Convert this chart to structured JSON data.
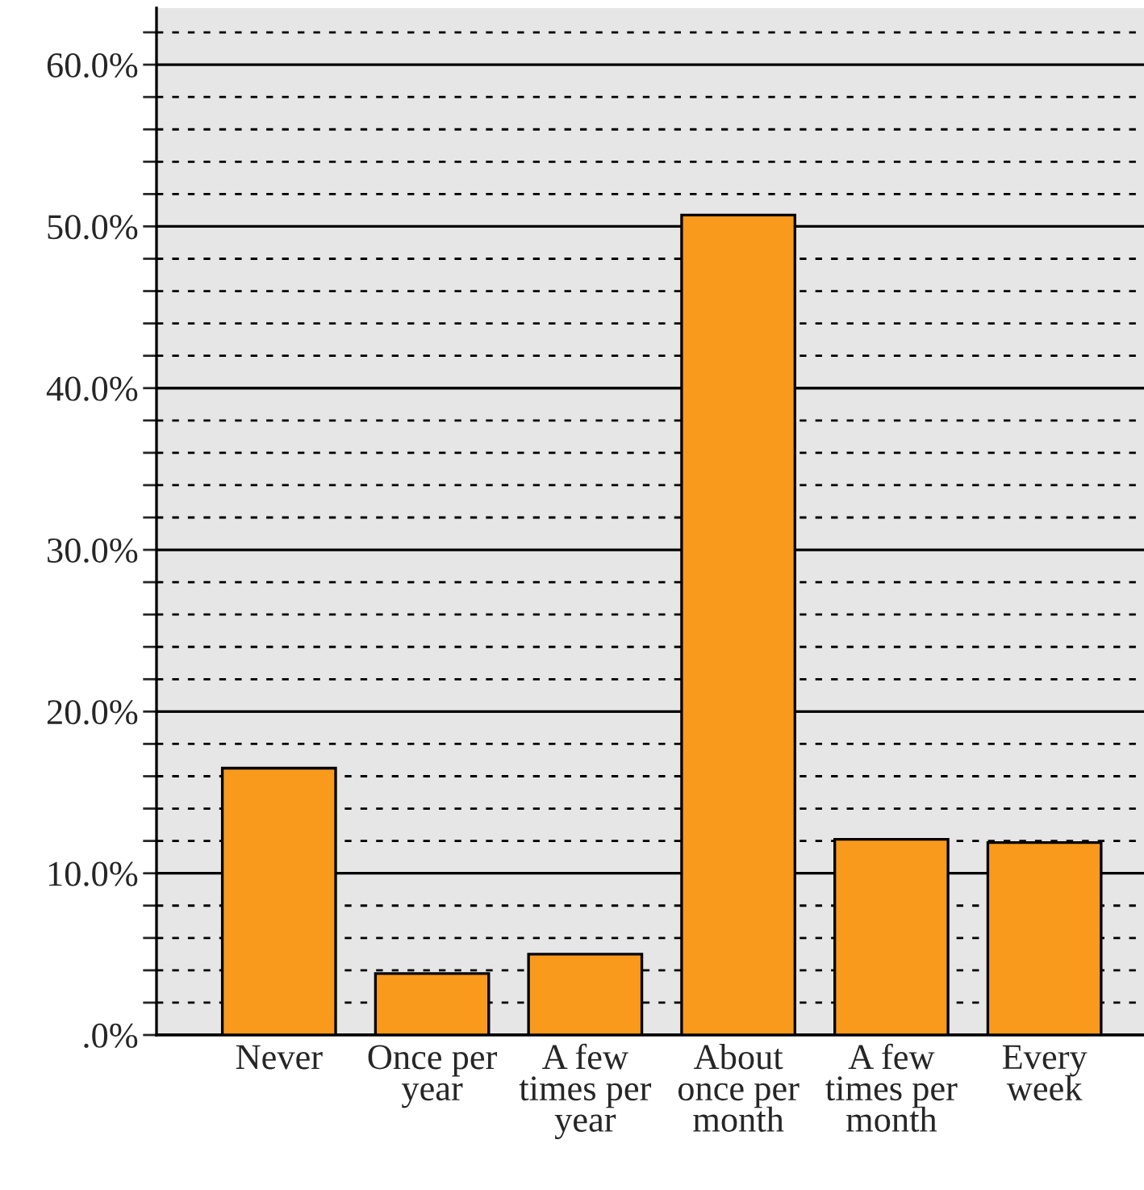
{
  "chart_data": {
    "type": "bar",
    "categories": [
      "Never",
      "Once per year",
      "A few times per year",
      "About once per month",
      "A few times per month",
      "Every week"
    ],
    "values": [
      16.5,
      3.8,
      5.0,
      50.7,
      12.1,
      11.9
    ],
    "color": "#f99a1c",
    "ylim": [
      0,
      63.5
    ],
    "yticks": [
      {
        "value": 0,
        "label": ".0%"
      },
      {
        "value": 2,
        "label": null
      },
      {
        "value": 4,
        "label": null
      },
      {
        "value": 6,
        "label": null
      },
      {
        "value": 8,
        "label": null
      },
      {
        "value": 10,
        "label": "10.0%"
      },
      {
        "value": 12,
        "label": null
      },
      {
        "value": 14,
        "label": null
      },
      {
        "value": 16,
        "label": null
      },
      {
        "value": 18,
        "label": null
      },
      {
        "value": 20,
        "label": "20.0%"
      },
      {
        "value": 22,
        "label": null
      },
      {
        "value": 24,
        "label": null
      },
      {
        "value": 26,
        "label": null
      },
      {
        "value": 28,
        "label": null
      },
      {
        "value": 30,
        "label": "30.0%"
      },
      {
        "value": 32,
        "label": null
      },
      {
        "value": 34,
        "label": null
      },
      {
        "value": 36,
        "label": null
      },
      {
        "value": 38,
        "label": null
      },
      {
        "value": 40,
        "label": "40.0%"
      },
      {
        "value": 42,
        "label": null
      },
      {
        "value": 44,
        "label": null
      },
      {
        "value": 46,
        "label": null
      },
      {
        "value": 48,
        "label": null
      },
      {
        "value": 50,
        "label": "50.0%"
      },
      {
        "value": 52,
        "label": null
      },
      {
        "value": 54,
        "label": null
      },
      {
        "value": 56,
        "label": null
      },
      {
        "value": 58,
        "label": null
      },
      {
        "value": 60,
        "label": "60.0%"
      },
      {
        "value": 62,
        "label": null
      }
    ],
    "grid": "y"
  }
}
